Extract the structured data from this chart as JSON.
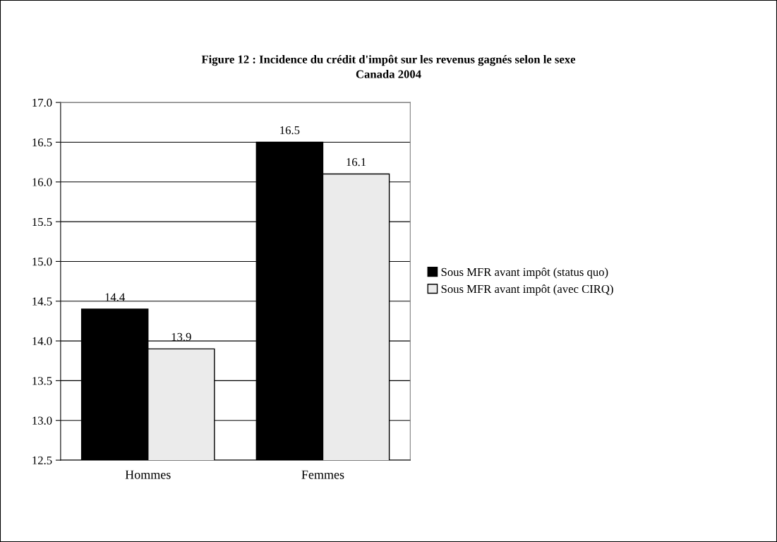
{
  "chart_data": {
    "type": "bar",
    "title": "Figure 12 : Incidence du crédit d'impôt sur les revenus gagnés selon le sexe\nCanada 2004",
    "categories": [
      "Hommes",
      "Femmes"
    ],
    "series": [
      {
        "name": "Sous MFR avant impôt (status quo)",
        "color": "#000000",
        "values": [
          14.4,
          16.5
        ]
      },
      {
        "name": "Sous MFR avant impôt (avec CIRQ)",
        "color": "#ebebeb",
        "values": [
          13.9,
          16.1
        ]
      }
    ],
    "ylim": [
      12.5,
      17.0
    ],
    "yticks": [
      {
        "value": 12.5,
        "label": "12.5"
      },
      {
        "value": 13.0,
        "label": "13.0"
      },
      {
        "value": 13.5,
        "label": "13.5"
      },
      {
        "value": 14.0,
        "label": "14.0"
      },
      {
        "value": 14.5,
        "label": "14.5"
      },
      {
        "value": 15.0,
        "label": "15.0"
      },
      {
        "value": 15.5,
        "label": "15.5"
      },
      {
        "value": 16.0,
        "label": "16.0"
      },
      {
        "value": 16.5,
        "label": "16.5"
      },
      {
        "value": 17.0,
        "label": "17.0"
      }
    ],
    "grid": "y",
    "legend": "right",
    "data_labels": true
  }
}
